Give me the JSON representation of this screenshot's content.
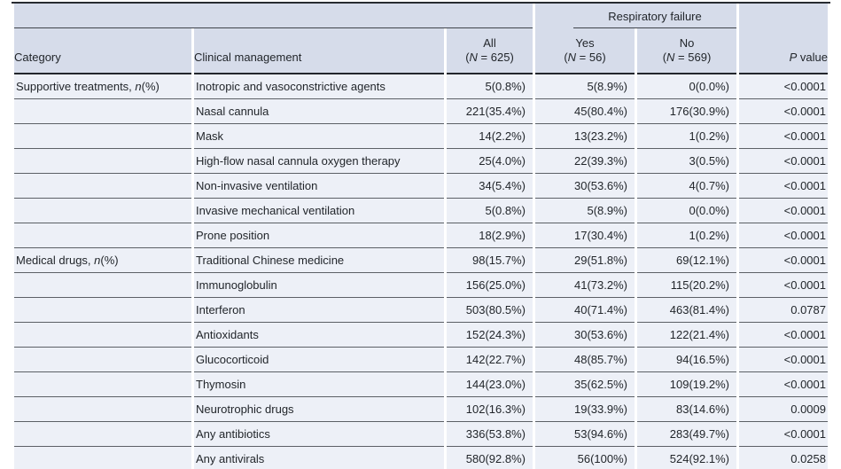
{
  "table": {
    "colors": {
      "header_bg": "#d6dcea",
      "body_row_bg": "#edf0f7",
      "row_divider": "#5c6066",
      "heavy_rule": "#23262c",
      "text": "#22262b",
      "page_bg": "#ffffff"
    },
    "spanner": {
      "label": "Respiratory failure"
    },
    "headers": {
      "category": "Category",
      "clinical": "Clinical management",
      "all": {
        "line1": "All",
        "line2": {
          "pre": "(",
          "it": "N",
          "post": " = 625)"
        }
      },
      "yes": {
        "line1": "Yes",
        "line2": {
          "pre": "(",
          "it": "N",
          "post": " = 56)"
        }
      },
      "no": {
        "line1": "No",
        "line2": {
          "pre": "(",
          "it": "N",
          "post": " = 569)"
        }
      },
      "pvalue": {
        "pre": "",
        "it": "P",
        "post": " value"
      }
    },
    "rows": [
      {
        "category": {
          "pre": "Supportive treatments, ",
          "it": "n",
          "post": "(%)"
        },
        "clinical": "Inotropic and vasoconstrictive agents",
        "all": "5(0.8%)",
        "yes": "5(8.9%)",
        "no": "0(0.0%)",
        "p": "<0.0001"
      },
      {
        "category": null,
        "clinical": "Nasal cannula",
        "all": "221(35.4%)",
        "yes": "45(80.4%)",
        "no": "176(30.9%)",
        "p": "<0.0001"
      },
      {
        "category": null,
        "clinical": "Mask",
        "all": "14(2.2%)",
        "yes": "13(23.2%)",
        "no": "1(0.2%)",
        "p": "<0.0001"
      },
      {
        "category": null,
        "clinical": "High-flow nasal cannula oxygen therapy",
        "all": "25(4.0%)",
        "yes": "22(39.3%)",
        "no": "3(0.5%)",
        "p": "<0.0001"
      },
      {
        "category": null,
        "clinical": "Non-invasive ventilation",
        "all": "34(5.4%)",
        "yes": "30(53.6%)",
        "no": "4(0.7%)",
        "p": "<0.0001"
      },
      {
        "category": null,
        "clinical": "Invasive mechanical ventilation",
        "all": "5(0.8%)",
        "yes": "5(8.9%)",
        "no": "0(0.0%)",
        "p": "<0.0001"
      },
      {
        "category": null,
        "clinical": "Prone position",
        "all": "18(2.9%)",
        "yes": "17(30.4%)",
        "no": "1(0.2%)",
        "p": "<0.0001"
      },
      {
        "category": {
          "pre": "Medical drugs, ",
          "it": "n",
          "post": "(%)"
        },
        "clinical": "Traditional Chinese medicine",
        "all": "98(15.7%)",
        "yes": "29(51.8%)",
        "no": "69(12.1%)",
        "p": "<0.0001"
      },
      {
        "category": null,
        "clinical": "Immunoglobulin",
        "all": "156(25.0%)",
        "yes": "41(73.2%)",
        "no": "115(20.2%)",
        "p": "<0.0001"
      },
      {
        "category": null,
        "clinical": "Interferon",
        "all": "503(80.5%)",
        "yes": "40(71.4%)",
        "no": "463(81.4%)",
        "p": "0.0787"
      },
      {
        "category": null,
        "clinical": "Antioxidants",
        "all": "152(24.3%)",
        "yes": "30(53.6%)",
        "no": "122(21.4%)",
        "p": "<0.0001"
      },
      {
        "category": null,
        "clinical": "Glucocorticoid",
        "all": "142(22.7%)",
        "yes": "48(85.7%)",
        "no": "94(16.5%)",
        "p": "<0.0001"
      },
      {
        "category": null,
        "clinical": "Thymosin",
        "all": "144(23.0%)",
        "yes": "35(62.5%)",
        "no": "109(19.2%)",
        "p": "<0.0001"
      },
      {
        "category": null,
        "clinical": "Neurotrophic drugs",
        "all": "102(16.3%)",
        "yes": "19(33.9%)",
        "no": "83(14.6%)",
        "p": "0.0009"
      },
      {
        "category": null,
        "clinical": "Any antibiotics",
        "all": "336(53.8%)",
        "yes": "53(94.6%)",
        "no": "283(49.7%)",
        "p": "<0.0001"
      },
      {
        "category": null,
        "clinical": "Any antivirals",
        "all": "580(92.8%)",
        "yes": "56(100%)",
        "no": "524(92.1%)",
        "p": "0.0258"
      }
    ]
  }
}
